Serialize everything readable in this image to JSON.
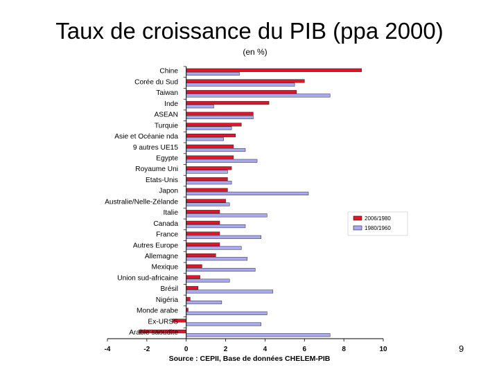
{
  "slide": {
    "title": "Taux de croissance du PIB (ppa 2000)",
    "unit_label": "(en %)",
    "source": "Source : CEPII, Base de données CHELEM-PIB",
    "page_number": "9"
  },
  "colors": {
    "series_2006": "#e0152a",
    "series_1980": "#a9a9f2",
    "bar_outline": "#222222"
  },
  "chart_data": {
    "type": "bar",
    "orientation": "horizontal",
    "title": "Taux de croissance du PIB (ppa 2000)",
    "ylabel": "(en %)",
    "xlim": [
      -4,
      10
    ],
    "xticks": [
      -4,
      -2,
      0,
      2,
      4,
      6,
      8,
      10
    ],
    "legend_position": "right",
    "categories": [
      "Chine",
      "Corée du Sud",
      "Taiwan",
      "Inde",
      "ASEAN",
      "Turquie",
      "Asie et Océanie nda",
      "9 autres UE15",
      "Egypte",
      "Royaume Uni",
      "Etats-Unis",
      "Japon",
      "Australie/Nelle-Zélande",
      "Italie",
      "Canada",
      "France",
      "Autres Europe",
      "Allemagne",
      "Mexique",
      "Union sud-africaine",
      "Brésil",
      "Nigéria",
      "Monde arabe",
      "Ex-URSS",
      "Arabie saoudite"
    ],
    "series": [
      {
        "name": "2006/1980",
        "values": [
          8.9,
          6.0,
          5.6,
          4.2,
          3.4,
          2.8,
          2.5,
          2.4,
          2.4,
          2.3,
          2.1,
          2.1,
          2.0,
          1.7,
          1.7,
          1.7,
          1.7,
          1.5,
          0.8,
          0.7,
          0.6,
          0.2,
          0.1,
          -0.7,
          -2.4
        ]
      },
      {
        "name": "1980/1960",
        "values": [
          2.7,
          5.5,
          7.3,
          1.4,
          3.4,
          2.3,
          1.9,
          3.0,
          3.6,
          2.1,
          2.3,
          6.2,
          2.2,
          4.1,
          3.0,
          3.8,
          2.8,
          3.1,
          3.5,
          2.2,
          4.4,
          1.8,
          4.1,
          3.8,
          7.3
        ]
      }
    ]
  }
}
